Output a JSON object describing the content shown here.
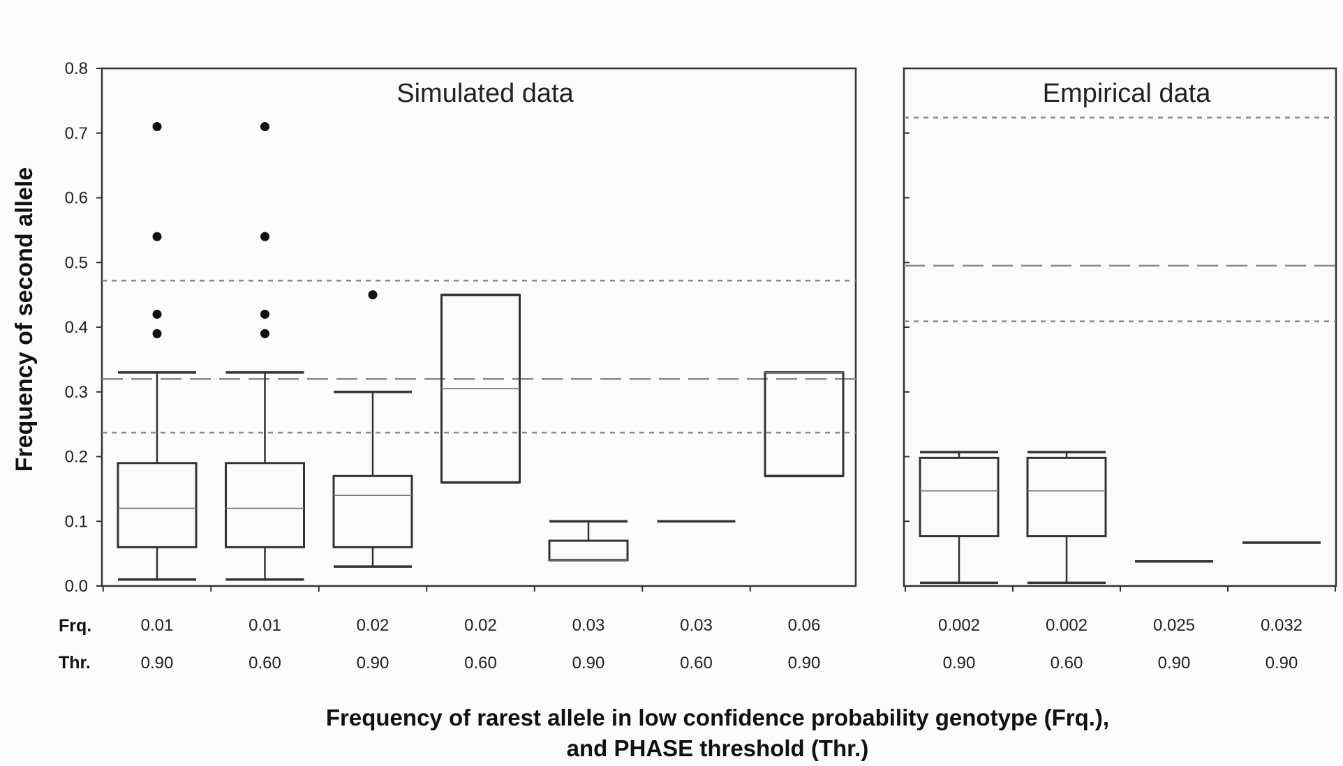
{
  "chart_data": {
    "type": "box",
    "ylabel": "Frequency of second allele",
    "xlabel_lines": [
      "Frequency of rarest allele in low confidence probability genotype (Frq.),",
      "and PHASE threshold (Thr.)"
    ],
    "row_labels": [
      "Frq.",
      "Thr."
    ],
    "ylim": [
      0,
      0.8
    ],
    "yticks": [
      "0.0",
      "0.1",
      "0.2",
      "0.3",
      "0.4",
      "0.5",
      "0.6",
      "0.7",
      "0.8"
    ],
    "panels": [
      {
        "title": "Simulated data",
        "reference_lines": {
          "mean": 0.32,
          "ci_lower": 0.237,
          "ci_upper": 0.472
        },
        "boxes": [
          {
            "frq": "0.01",
            "thr": "0.90",
            "whisker_low": 0.01,
            "q1": 0.06,
            "median": 0.12,
            "q3": 0.19,
            "whisker_high": 0.33,
            "outliers": [
              0.39,
              0.42,
              0.54,
              0.71
            ]
          },
          {
            "frq": "0.01",
            "thr": "0.60",
            "whisker_low": 0.01,
            "q1": 0.06,
            "median": 0.12,
            "q3": 0.19,
            "whisker_high": 0.33,
            "outliers": [
              0.39,
              0.42,
              0.54,
              0.71
            ]
          },
          {
            "frq": "0.02",
            "thr": "0.90",
            "whisker_low": 0.03,
            "q1": 0.06,
            "median": 0.14,
            "q3": 0.17,
            "whisker_high": 0.3,
            "outliers": [
              0.45
            ]
          },
          {
            "frq": "0.02",
            "thr": "0.60",
            "whisker_low": 0.16,
            "q1": 0.16,
            "median": 0.305,
            "q3": 0.45,
            "whisker_high": 0.45,
            "outliers": []
          },
          {
            "frq": "0.03",
            "thr": "0.90",
            "whisker_low": 0.04,
            "q1": 0.04,
            "median": 0.04,
            "q3": 0.07,
            "whisker_high": 0.1,
            "outliers": []
          },
          {
            "frq": "0.03",
            "thr": "0.60",
            "whisker_low": 0.1,
            "q1": 0.1,
            "median": 0.1,
            "q3": 0.1,
            "whisker_high": 0.1,
            "outliers": []
          },
          {
            "frq": "0.06",
            "thr": "0.90",
            "whisker_low": 0.17,
            "q1": 0.17,
            "median": 0.33,
            "q3": 0.33,
            "whisker_high": 0.33,
            "outliers": []
          }
        ]
      },
      {
        "title": "Empirical data",
        "reference_lines": {
          "mean": 0.495,
          "ci_lower": 0.409,
          "ci_upper": 0.724
        },
        "boxes": [
          {
            "frq": "0.002",
            "thr": "0.90",
            "whisker_low": 0.005,
            "q1": 0.077,
            "median": 0.147,
            "q3": 0.198,
            "whisker_high": 0.207,
            "outliers": []
          },
          {
            "frq": "0.002",
            "thr": "0.60",
            "whisker_low": 0.005,
            "q1": 0.077,
            "median": 0.147,
            "q3": 0.198,
            "whisker_high": 0.207,
            "outliers": []
          },
          {
            "frq": "0.025",
            "thr": "0.90",
            "whisker_low": 0.038,
            "q1": 0.038,
            "median": 0.038,
            "q3": 0.038,
            "whisker_high": 0.038,
            "outliers": []
          },
          {
            "frq": "0.032",
            "thr": "0.90",
            "whisker_low": 0.067,
            "q1": 0.067,
            "median": 0.067,
            "q3": 0.067,
            "whisker_high": 0.067,
            "outliers": []
          }
        ]
      }
    ]
  }
}
